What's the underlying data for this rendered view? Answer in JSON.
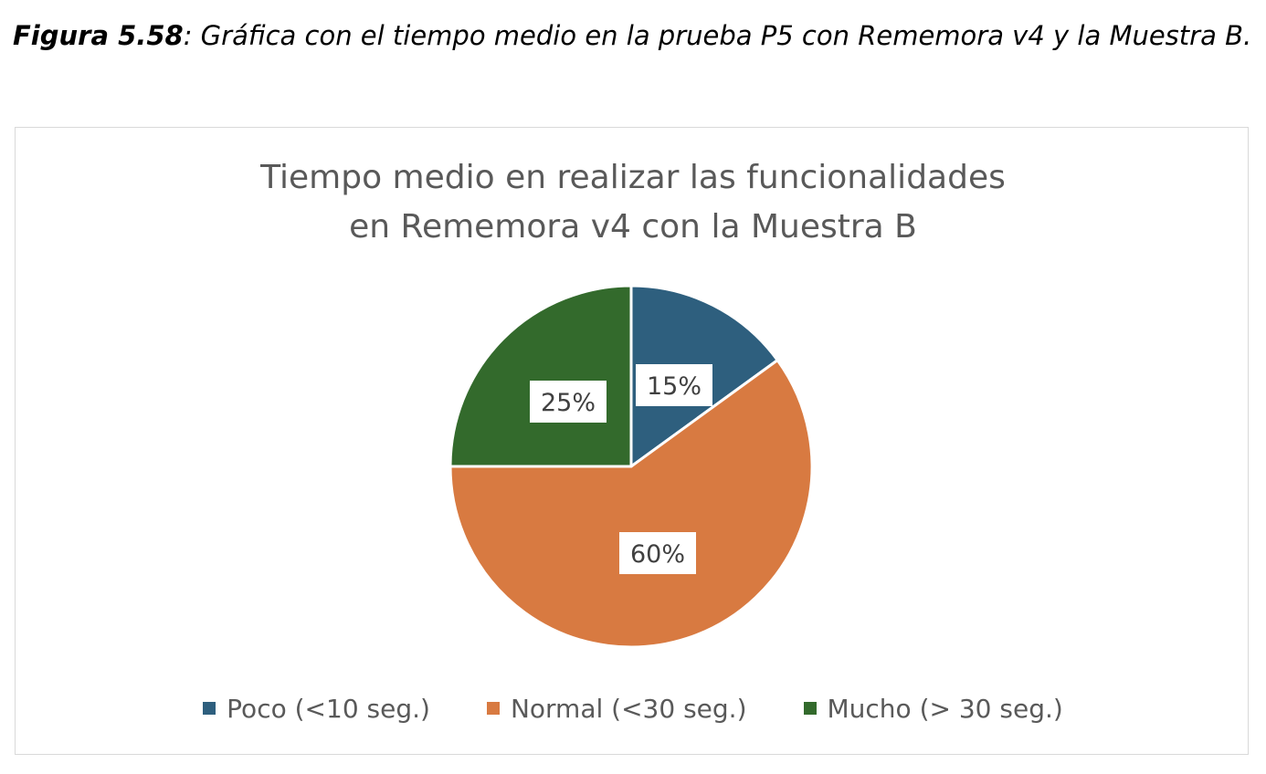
{
  "caption": {
    "label": "Figura 5.58",
    "text": ": Gráfica con el tiempo medio en la prueba P5 con Rememora v4 y la Muestra B."
  },
  "chart_data": {
    "type": "pie",
    "title_lines": [
      "Tiempo medio en realizar las funcionalidades",
      "en Rememora v4 con la Muestra B"
    ],
    "categories": [
      "Poco (<10 seg.)",
      "Normal (<30 seg.)",
      "Mucho (> 30 seg.)"
    ],
    "values": [
      15,
      60,
      25
    ],
    "labels": [
      "15%",
      "60%",
      "25%"
    ],
    "colors": [
      "#2e5f7e",
      "#d87a41",
      "#336a2c"
    ],
    "legend": "bottom"
  }
}
